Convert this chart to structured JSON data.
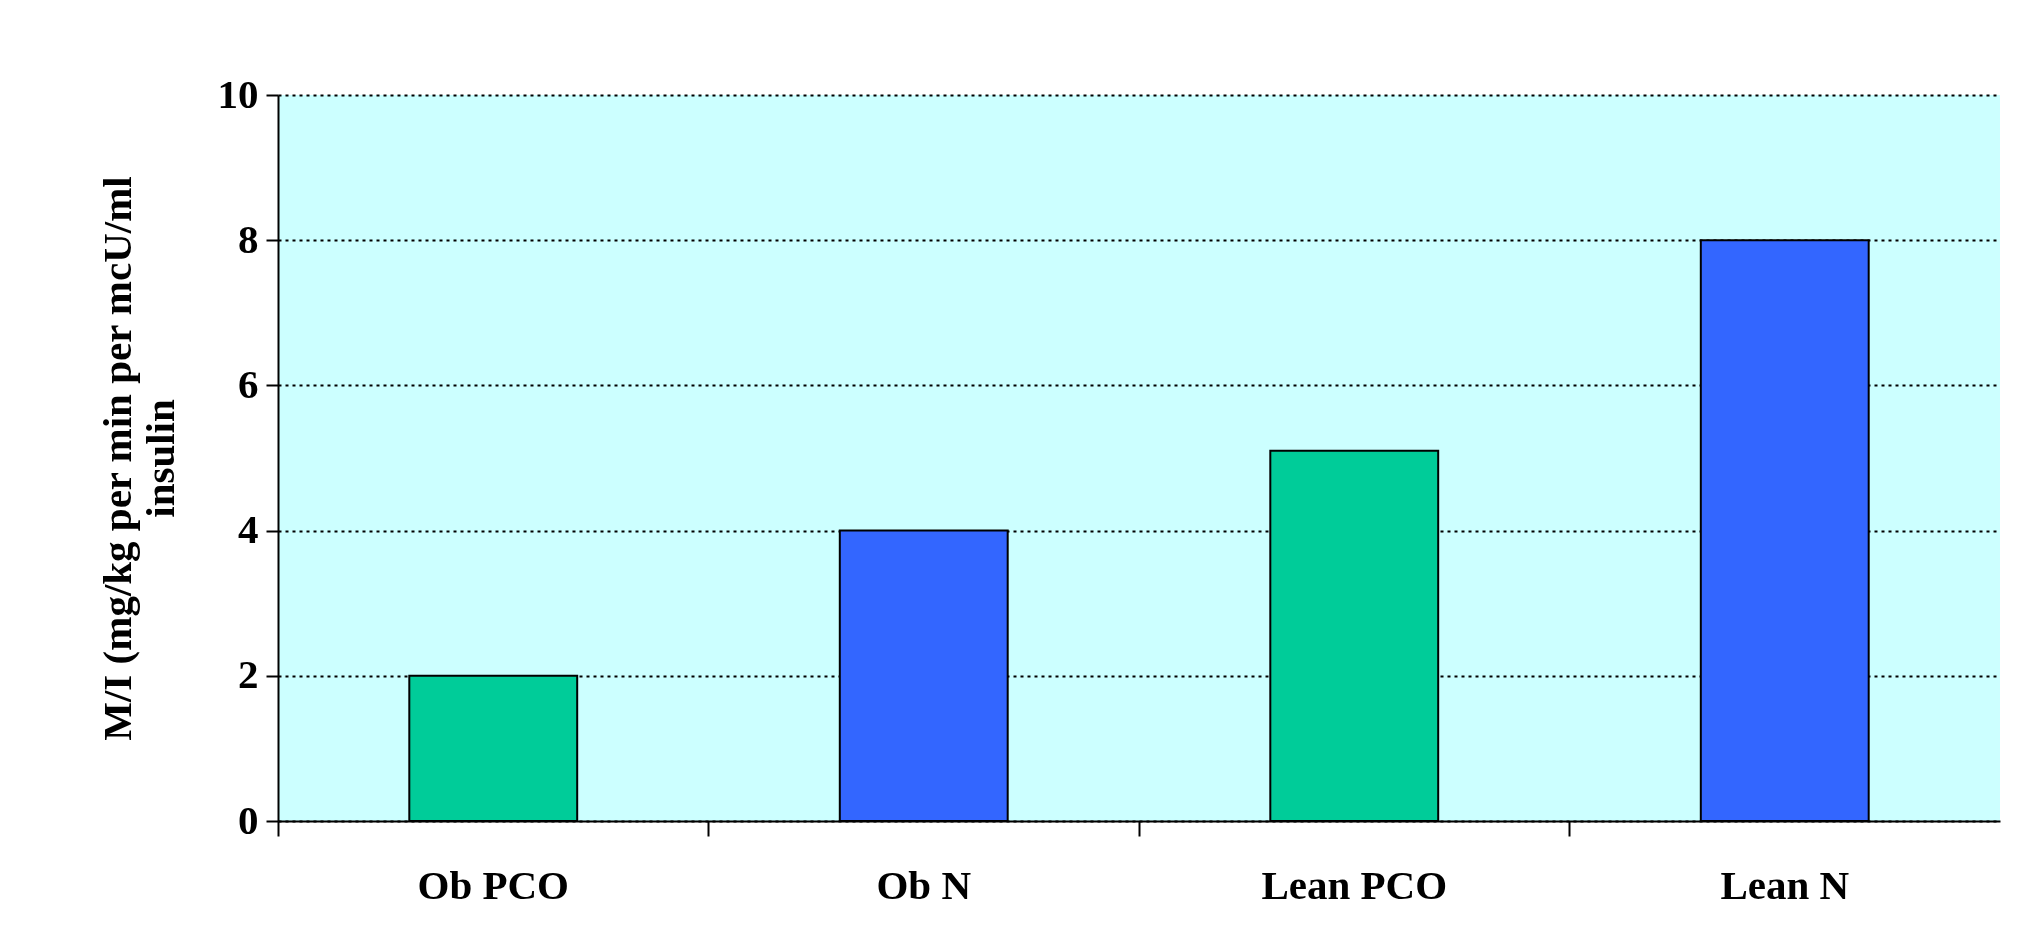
{
  "chart_data": {
    "type": "bar",
    "ylabel": "M/I (mg/kg per min per mcU/ml\ninsulin",
    "categories": [
      "Ob PCO",
      "Ob N",
      "Lean PCO",
      "Lean N"
    ],
    "values": [
      2,
      4,
      5.1,
      8
    ],
    "colors": [
      "#00cc99",
      "#3366ff",
      "#00cc99",
      "#3366ff"
    ],
    "ylim": [
      0,
      10
    ],
    "yticks": [
      0,
      2,
      4,
      6,
      8,
      10
    ],
    "grid": "y",
    "legend": false
  }
}
